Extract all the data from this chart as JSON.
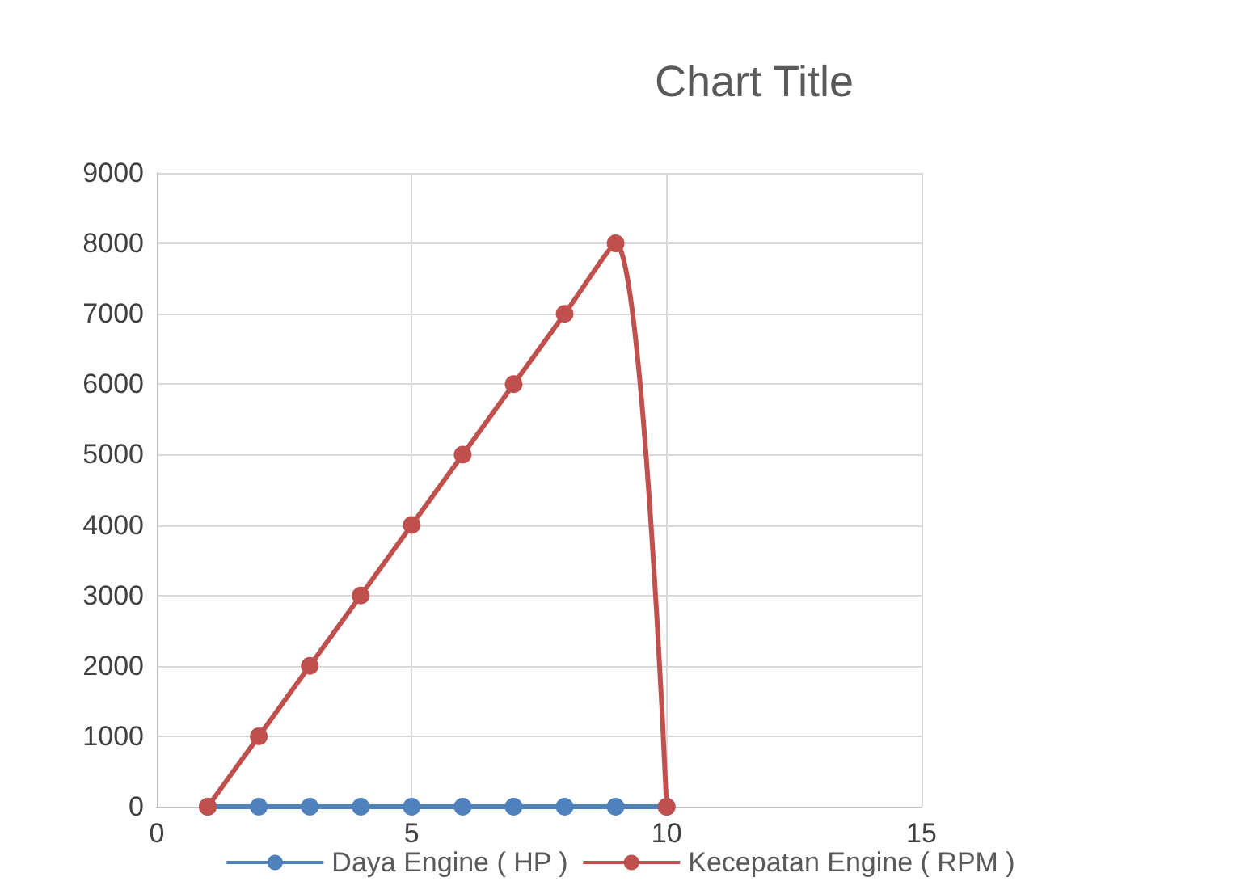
{
  "chart_data": {
    "type": "line",
    "title": "Chart Title",
    "x": [
      1,
      2,
      3,
      4,
      5,
      6,
      7,
      8,
      9,
      10
    ],
    "series": [
      {
        "name": "Daya Engine ( HP )",
        "color": "#4f81bd",
        "values": [
          0,
          0,
          0,
          0,
          0,
          0,
          0,
          0,
          0,
          0
        ]
      },
      {
        "name": "Kecepatan Engine ( RPM )",
        "color": "#c0504d",
        "values": [
          0,
          1000,
          2000,
          3000,
          4000,
          5000,
          6000,
          7000,
          8000,
          0
        ]
      }
    ],
    "xlim": [
      0,
      15
    ],
    "xticks": [
      0,
      5,
      10,
      15
    ],
    "ylim": [
      0,
      9000
    ],
    "yticks": [
      0,
      1000,
      2000,
      3000,
      4000,
      5000,
      6000,
      7000,
      8000,
      9000
    ],
    "grid": true,
    "legend": "bottom",
    "marker": "circle",
    "line_style": "solid"
  }
}
